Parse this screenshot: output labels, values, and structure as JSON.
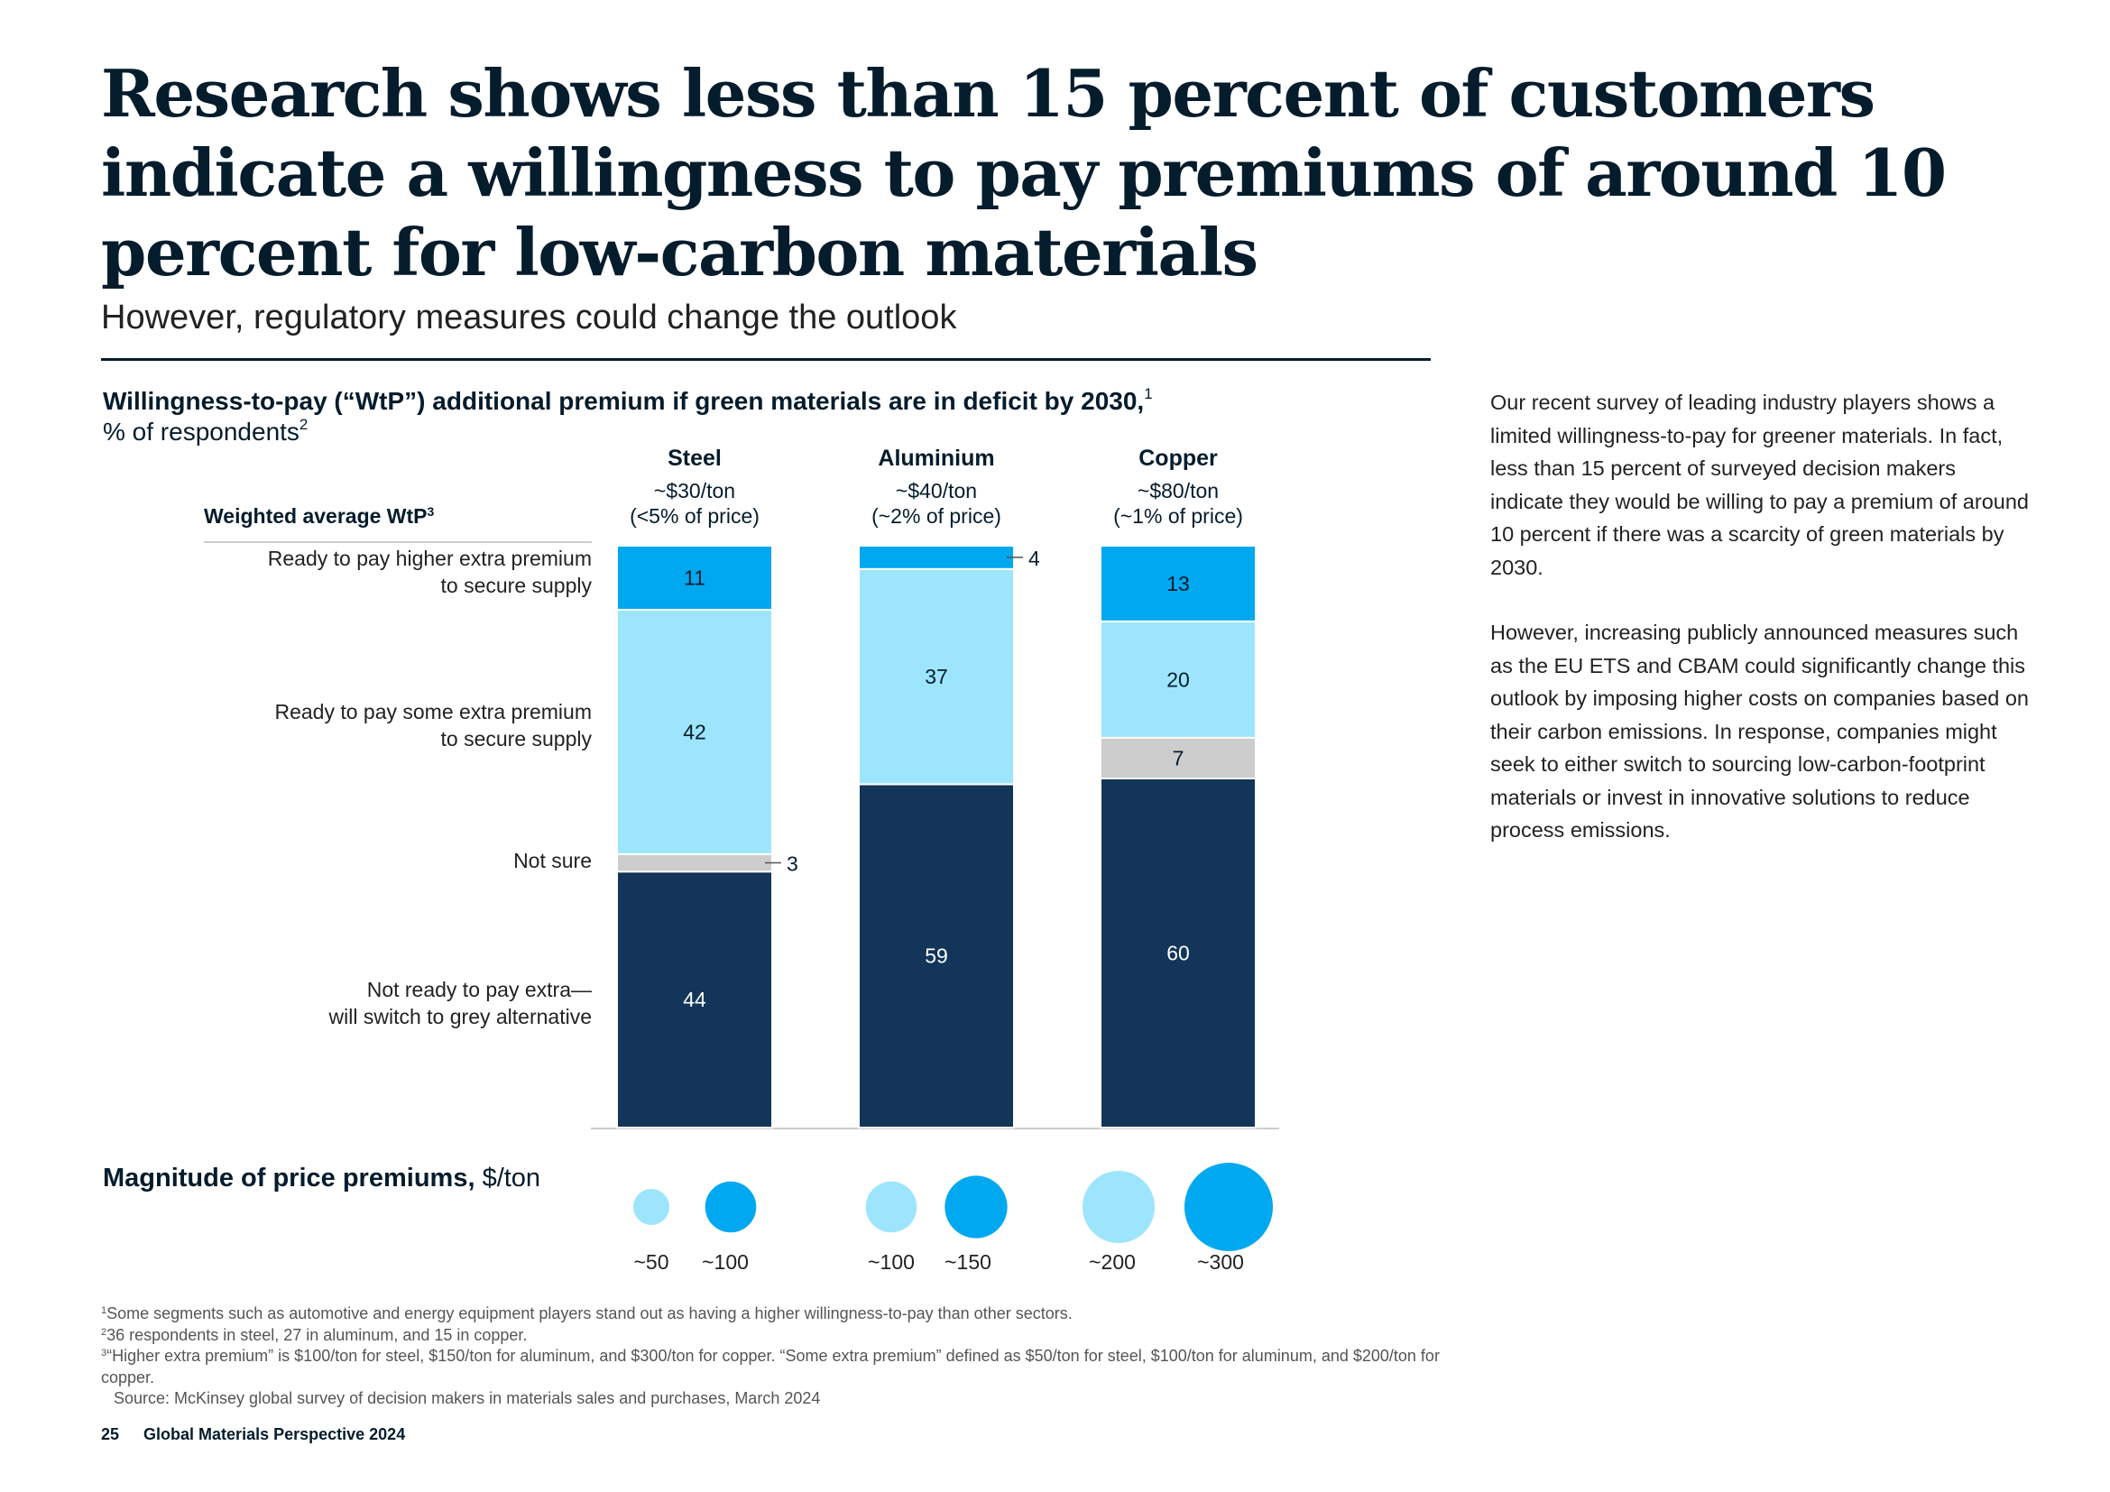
{
  "header": {
    "title": "Research shows less than 15 percent of customers indicate a willingness to pay premiums of around 10 percent for low-carbon materials",
    "subtitle": "However, regulatory measures could change the outlook"
  },
  "chart_header": {
    "title_bold": "Willingness-to-pay (“WtP”) additional premium if green materials are in deficit by 2030,",
    "title_sup": "1",
    "units": "% of respondents",
    "units_sup": "2",
    "wtp_label": "Weighted average WtP",
    "wtp_sup": "3"
  },
  "columns": [
    {
      "metal": "Steel",
      "price": "~$30/ton",
      "share": "(<5% of price)"
    },
    {
      "metal": "Aluminium",
      "price": "~$40/ton",
      "share": "(~2% of price)"
    },
    {
      "metal": "Copper",
      "price": "~$80/ton",
      "share": "(~1% of price)"
    }
  ],
  "row_labels": {
    "higher": [
      "Ready to pay higher extra premium",
      "to secure supply"
    ],
    "some": [
      "Ready to pay some extra premium",
      "to secure supply"
    ],
    "notsure": [
      "Not sure"
    ],
    "notready": [
      "Not ready to pay extra—",
      "will switch to grey alternative"
    ]
  },
  "chart_data": {
    "type": "bar",
    "stacked": true,
    "categories": [
      "Steel",
      "Aluminium",
      "Copper"
    ],
    "series": [
      {
        "name": "Not ready to pay extra—will switch to grey alternative",
        "values": [
          44,
          59,
          60
        ],
        "color": "#13355a"
      },
      {
        "name": "Not sure",
        "values": [
          3,
          0,
          7
        ],
        "color": "#cdcdcd"
      },
      {
        "name": "Ready to pay some extra premium to secure supply",
        "values": [
          42,
          37,
          20
        ],
        "color": "#9de5fd"
      },
      {
        "name": "Ready to pay higher extra premium to secure supply",
        "values": [
          11,
          4,
          13
        ],
        "color": "#00a8f0"
      }
    ],
    "ylim": [
      0,
      100
    ],
    "xlabel": "",
    "ylabel": ""
  },
  "bubbles": {
    "label_bold": "Magnitude of price premiums,",
    "label_units": "$/ton",
    "items": [
      {
        "value": 50,
        "label": "~50",
        "color": "#9de5fd"
      },
      {
        "value": 100,
        "label": "~100",
        "color": "#00a8f0"
      },
      {
        "value": 100,
        "label": "~100",
        "color": "#9de5fd"
      },
      {
        "value": 150,
        "label": "~150",
        "color": "#00a8f0"
      },
      {
        "value": 200,
        "label": "~200",
        "color": "#9de5fd"
      },
      {
        "value": 300,
        "label": "~300",
        "color": "#00a8f0"
      }
    ]
  },
  "side_text": {
    "p1": "Our recent survey of leading industry players shows a limited willingness-to-pay for greener materials. In fact, less than 15 percent of surveyed decision makers indicate they would be willing to pay a premium of around 10 percent if there was a scarcity of green materials by 2030.",
    "p2": "However, increasing publicly announced measures such as the EU ETS and CBAM could significantly change this outlook by imposing higher costs on companies based on their carbon emissions. In response, companies might seek to either switch to sourcing low-carbon-footprint materials or invest in innovative solutions to reduce process emissions."
  },
  "footnotes": [
    {
      "mark": "1",
      "text": "Some segments such as automotive and energy equipment players stand out as having a higher willingness-to-pay than other sectors."
    },
    {
      "mark": "2",
      "text": "36 respondents in steel, 27 in aluminum, and 15 in copper."
    },
    {
      "mark": "3",
      "text": "“Higher extra premium” is $100/ton for steel, $150/ton for aluminum, and $300/ton for copper. “Some extra premium” defined as $50/ton for steel, $100/ton for aluminum, and $200/ton for copper."
    },
    {
      "mark": "",
      "text": "Source: McKinsey global survey of decision makers in materials sales and purchases, March 2024"
    }
  ],
  "footer": {
    "page": "25",
    "publication": "Global Materials Perspective 2024"
  }
}
